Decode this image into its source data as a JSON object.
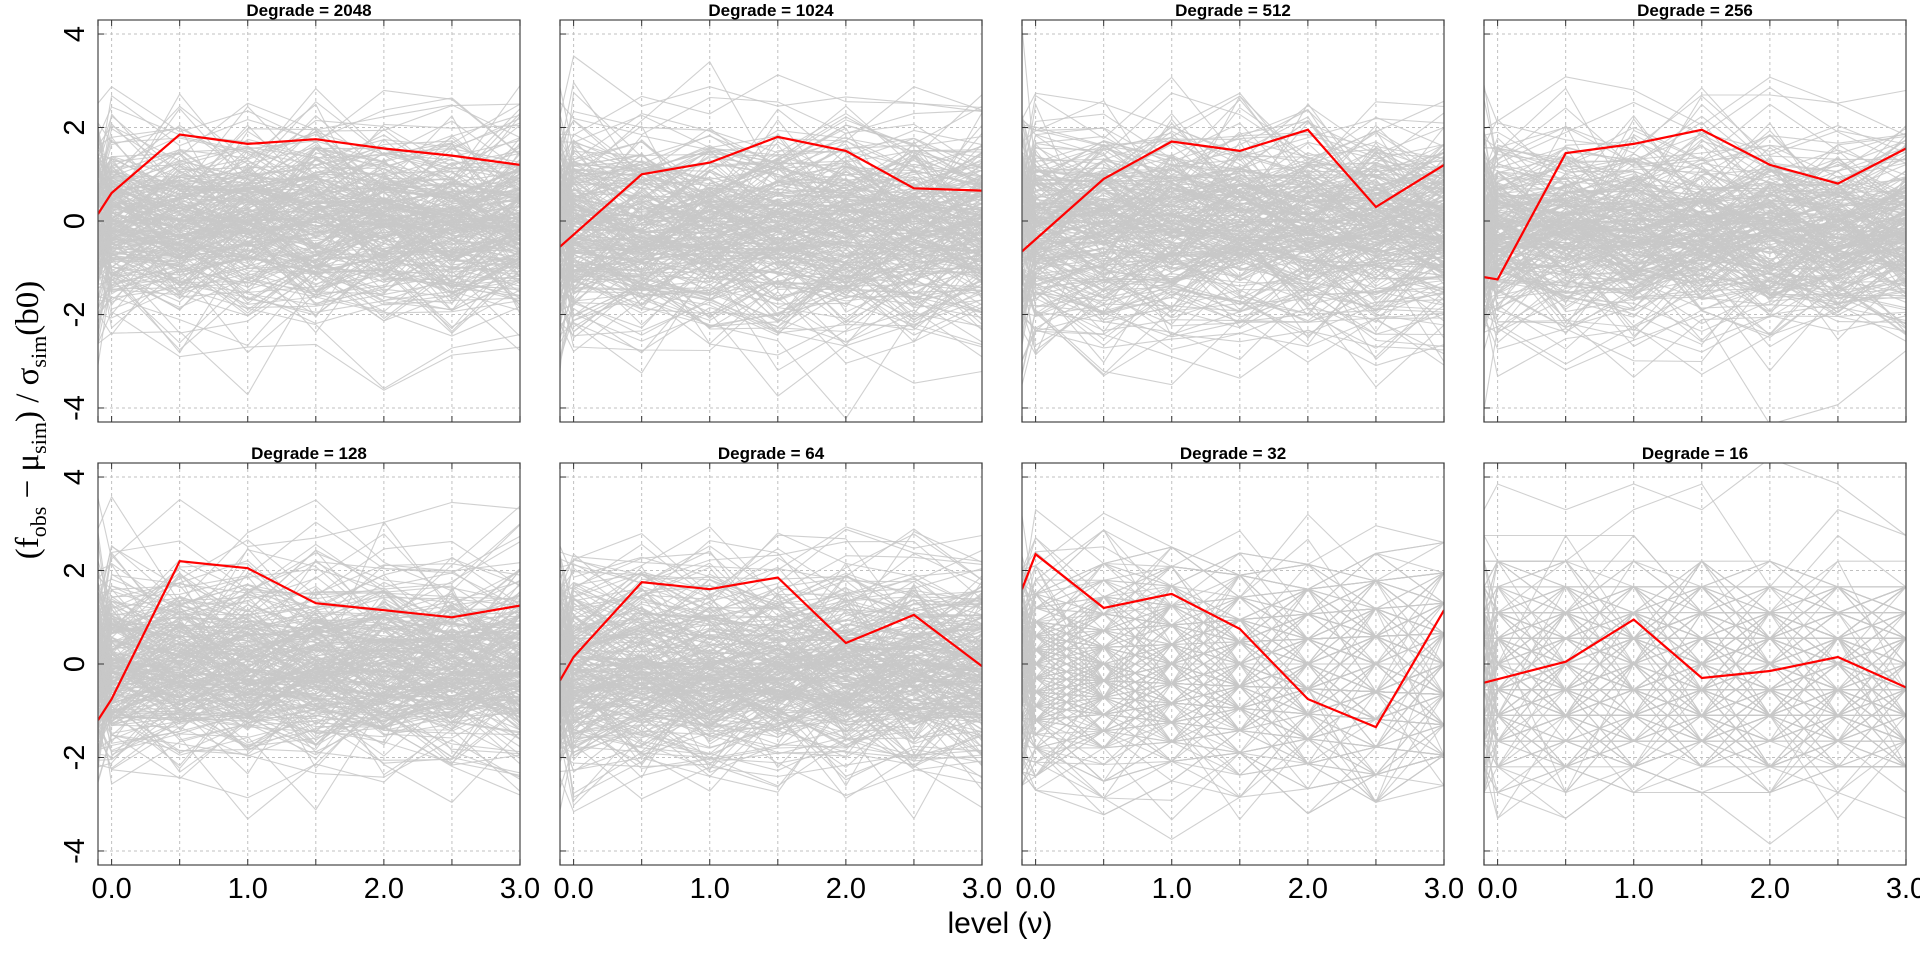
{
  "chart_data": {
    "type": "line",
    "xlabel": "level (ν)",
    "ylabel": {
      "open": "(f",
      "sub_obs": "obs",
      "minus": " − μ",
      "sub_sim": "sim",
      "mid": ") / σ",
      "sub_sim2": "sim",
      "close": "(b0)"
    },
    "x_ticks": [
      "0.0",
      "1.0",
      "2.0",
      "3.0"
    ],
    "y_ticks": [
      "-4",
      "-2",
      "0",
      "2",
      "4"
    ],
    "xlim": [
      -0.1,
      3.0
    ],
    "ylim": [
      -4.3,
      4.3
    ],
    "grid": true,
    "colors": {
      "observed": "#ff0000",
      "simulated": "#c8c8c8",
      "frame": "#555555"
    },
    "panels": [
      {
        "title": "Degrade = 2048",
        "x": [
          -0.1,
          0.0,
          0.5,
          1.0,
          1.5,
          2.0,
          2.5,
          3.0
        ],
        "observed": [
          0.15,
          0.6,
          1.85,
          1.65,
          1.75,
          1.55,
          1.4,
          1.2
        ]
      },
      {
        "title": "Degrade = 1024",
        "x": [
          -0.1,
          0.5,
          1.0,
          1.5,
          2.0,
          2.5,
          3.0
        ],
        "observed": [
          -0.55,
          1.0,
          1.25,
          1.8,
          1.5,
          0.7,
          0.65
        ]
      },
      {
        "title": "Degrade = 512",
        "x": [
          -0.1,
          0.5,
          1.0,
          1.5,
          2.0,
          2.5,
          3.0
        ],
        "observed": [
          -0.65,
          0.9,
          1.7,
          1.5,
          1.95,
          0.3,
          1.2
        ]
      },
      {
        "title": "Degrade = 256",
        "x": [
          -0.1,
          0.0,
          0.5,
          1.0,
          1.5,
          2.0,
          2.5,
          3.0
        ],
        "observed": [
          -1.2,
          -1.25,
          1.45,
          1.65,
          1.95,
          1.2,
          0.8,
          1.55
        ]
      },
      {
        "title": "Degrade = 128",
        "x": [
          -0.1,
          0.0,
          0.5,
          1.0,
          1.5,
          2.0,
          2.5,
          3.0
        ],
        "observed": [
          -1.2,
          -0.75,
          2.2,
          2.05,
          1.3,
          1.15,
          1.0,
          1.25
        ]
      },
      {
        "title": "Degrade = 64",
        "x": [
          -0.1,
          0.0,
          0.5,
          1.0,
          1.5,
          2.0,
          2.5,
          3.0
        ],
        "observed": [
          -0.35,
          0.15,
          1.75,
          1.6,
          1.85,
          0.45,
          1.05,
          -0.05
        ]
      },
      {
        "title": "Degrade = 32",
        "x": [
          -0.1,
          0.0,
          0.5,
          1.0,
          1.5,
          2.0,
          2.5,
          3.0
        ],
        "observed": [
          1.6,
          2.35,
          1.2,
          1.5,
          0.75,
          -0.75,
          -1.35,
          1.15
        ]
      },
      {
        "title": "Degrade = 16",
        "x": [
          -0.1,
          0.5,
          1.0,
          1.5,
          2.0,
          2.5,
          3.0
        ],
        "observed": [
          -0.4,
          0.05,
          0.95,
          -0.3,
          -0.15,
          0.15,
          -0.5
        ]
      }
    ]
  }
}
